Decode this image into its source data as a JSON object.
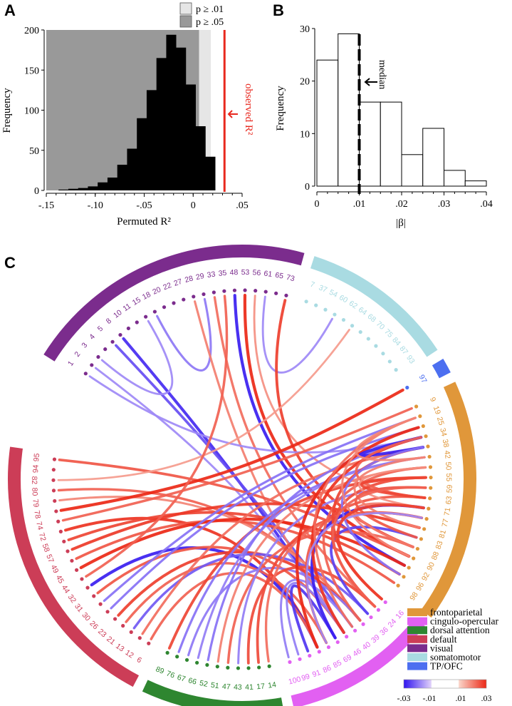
{
  "chart_data": [
    {
      "panel": "A",
      "type": "histogram",
      "xlabel": "Permuted R²",
      "ylabel": "Frequency",
      "xlim": [
        -0.15,
        0.05
      ],
      "ylim": [
        0,
        200
      ],
      "xticks": [
        -0.15,
        -0.1,
        -0.05,
        0,
        0.05
      ],
      "xtick_labels": [
        "-.15",
        "-.10",
        "-.05",
        "0",
        ".05"
      ],
      "yticks": [
        0,
        50,
        100,
        150,
        200
      ],
      "ytick_labels": [
        "0",
        "50",
        "100",
        "150",
        "200"
      ],
      "bin_edges": [
        -0.1375,
        -0.1275,
        -0.1175,
        -0.1075,
        -0.0975,
        -0.0875,
        -0.0775,
        -0.0675,
        -0.0575,
        -0.0475,
        -0.0375,
        -0.0275,
        -0.0175,
        -0.0075,
        0.0025,
        0.0125,
        0.0225
      ],
      "counts": [
        1,
        2,
        3,
        5,
        10,
        16,
        32,
        52,
        90,
        125,
        165,
        194,
        178,
        132,
        80,
        42
      ],
      "shaded_regions": [
        {
          "label": "p ≥ .01",
          "x_from": -0.15,
          "x_to": 0.018,
          "color": "#e6e6e6"
        },
        {
          "label": "p ≥ .05",
          "x_from": -0.15,
          "x_to": 0.006,
          "color": "#999999"
        }
      ],
      "observed": {
        "label": "observed R²",
        "value": 0.032,
        "color": "#e8281e"
      },
      "legend": [
        "p ≥ .01",
        "p ≥ .05"
      ]
    },
    {
      "panel": "B",
      "type": "histogram",
      "xlabel": "|β|",
      "ylabel": "Frequency",
      "xlim": [
        0,
        0.04
      ],
      "ylim": [
        0,
        30
      ],
      "xticks": [
        0,
        0.01,
        0.02,
        0.03,
        0.04
      ],
      "xtick_labels": [
        "0",
        ".01",
        ".02",
        ".03",
        ".04"
      ],
      "yticks": [
        0,
        10,
        20,
        30
      ],
      "ytick_labels": [
        "0",
        "10",
        "20",
        "30"
      ],
      "bin_edges": [
        0,
        0.005,
        0.01,
        0.015,
        0.02,
        0.025,
        0.03,
        0.035,
        0.04
      ],
      "counts": [
        24,
        29,
        16,
        16,
        6,
        11,
        3,
        1
      ],
      "median": {
        "label": "median",
        "value": 0.01
      }
    },
    {
      "panel": "C",
      "type": "chord",
      "node_order": [
        1,
        2,
        3,
        4,
        5,
        8,
        10,
        11,
        15,
        18,
        20,
        22,
        27,
        28,
        29,
        33,
        35,
        48,
        53,
        56,
        61,
        65,
        73,
        7,
        37,
        54,
        60,
        62,
        64,
        68,
        70,
        75,
        84,
        87,
        93,
        97,
        9,
        19,
        25,
        34,
        38,
        42,
        50,
        55,
        59,
        63,
        71,
        77,
        81,
        83,
        88,
        90,
        92,
        96,
        98,
        16,
        24,
        36,
        39,
        40,
        46,
        69,
        85,
        86,
        91,
        99,
        100,
        14,
        17,
        41,
        43,
        47,
        51,
        52,
        66,
        67,
        76,
        89,
        6,
        12,
        13,
        21,
        23,
        26,
        30,
        31,
        32,
        44,
        45,
        49,
        57,
        58,
        72,
        74,
        78,
        79,
        80,
        82,
        94,
        95
      ],
      "networks": [
        {
          "name": "visual",
          "color": "#7b2c8d",
          "nodes": [
            1,
            2,
            3,
            4,
            5,
            8,
            10,
            11,
            15,
            18,
            20,
            22,
            27,
            28,
            29,
            33,
            35,
            48,
            53,
            56,
            61,
            65,
            73
          ]
        },
        {
          "name": "somatomotor",
          "color": "#a9dbe2",
          "nodes": [
            7,
            37,
            54,
            60,
            62,
            64,
            68,
            70,
            75,
            84,
            87,
            93
          ]
        },
        {
          "name": "TP/OFC",
          "color": "#4c6ff0",
          "nodes": [
            97
          ]
        },
        {
          "name": "frontoparietal",
          "color": "#e0973a",
          "nodes": [
            9,
            19,
            25,
            34,
            38,
            42,
            50,
            55,
            59,
            63,
            71,
            77,
            81,
            83,
            88,
            90,
            92,
            96,
            98
          ]
        },
        {
          "name": "cingulo-opercular",
          "color": "#e260f2",
          "nodes": [
            16,
            24,
            36,
            39,
            40,
            46,
            69,
            85,
            86,
            91,
            99,
            100
          ]
        },
        {
          "name": "dorsal attention",
          "color": "#2e8630",
          "nodes": [
            14,
            17,
            41,
            43,
            47,
            51,
            52,
            66,
            67,
            76,
            89
          ]
        },
        {
          "name": "default",
          "color": "#cc3d57",
          "nodes": [
            6,
            12,
            13,
            21,
            23,
            26,
            30,
            31,
            32,
            44,
            45,
            49,
            57,
            58,
            72,
            74,
            78,
            79,
            80,
            82,
            94,
            95
          ]
        }
      ],
      "legend": [
        "frontoparietal",
        "cingulo-opercular",
        "dorsal attention",
        "default",
        "visual",
        "somatomotor",
        "TP/OFC"
      ],
      "colorbar": {
        "ticks": [
          "-.03",
          "-.01",
          ".01",
          ".03"
        ],
        "min": -0.03,
        "max": 0.03
      },
      "edges": [
        [
          8,
          46,
          -0.028
        ],
        [
          5,
          40,
          -0.022
        ],
        [
          18,
          29,
          -0.015
        ],
        [
          28,
          46,
          0.015
        ],
        [
          33,
          24,
          0.018
        ],
        [
          48,
          92,
          -0.03
        ],
        [
          53,
          90,
          0.03
        ],
        [
          56,
          63,
          0.012
        ],
        [
          61,
          60,
          -0.012
        ],
        [
          73,
          88,
          0.026
        ],
        [
          2,
          46,
          -0.012
        ],
        [
          3,
          15,
          -0.012
        ],
        [
          1,
          34,
          -0.012
        ],
        [
          95,
          90,
          0.022
        ],
        [
          82,
          64,
          0.01
        ],
        [
          80,
          39,
          0.02
        ],
        [
          79,
          39,
          0.014
        ],
        [
          78,
          97,
          0.03
        ],
        [
          74,
          9,
          0.02
        ],
        [
          72,
          86,
          0.028
        ],
        [
          58,
          96,
          0.025
        ],
        [
          57,
          81,
          0.027
        ],
        [
          49,
          98,
          0.022
        ],
        [
          45,
          92,
          0.03
        ],
        [
          44,
          35,
          0.02
        ],
        [
          32,
          86,
          -0.03
        ],
        [
          31,
          46,
          0.022
        ],
        [
          30,
          19,
          -0.016
        ],
        [
          26,
          25,
          -0.016
        ],
        [
          23,
          39,
          0.026
        ],
        [
          21,
          85,
          0.02
        ],
        [
          13,
          36,
          -0.02
        ],
        [
          12,
          38,
          0.018
        ],
        [
          6,
          86,
          0.02
        ],
        [
          89,
          55,
          0.025
        ],
        [
          76,
          42,
          -0.016
        ],
        [
          67,
          39,
          -0.015
        ],
        [
          66,
          42,
          -0.014
        ],
        [
          52,
          34,
          -0.016
        ],
        [
          51,
          50,
          0.015
        ],
        [
          47,
          88,
          0.02
        ],
        [
          43,
          59,
          -0.014
        ],
        [
          41,
          24,
          0.024
        ],
        [
          17,
          77,
          0.024
        ],
        [
          14,
          77,
          0.018
        ],
        [
          100,
          40,
          -0.014
        ],
        [
          99,
          46,
          -0.014
        ],
        [
          91,
          69,
          -0.026
        ],
        [
          86,
          25,
          0.03
        ],
        [
          85,
          63,
          0.022
        ],
        [
          69,
          71,
          -0.03
        ],
        [
          46,
          34,
          0.028
        ],
        [
          40,
          19,
          0.018
        ],
        [
          39,
          50,
          0.02
        ],
        [
          36,
          83,
          -0.024
        ],
        [
          24,
          55,
          0.024
        ],
        [
          16,
          38,
          0.025
        ],
        [
          38,
          34,
          -0.03
        ],
        [
          96,
          38,
          -0.016
        ],
        [
          90,
          19,
          0.014
        ],
        [
          88,
          71,
          0.016
        ],
        [
          63,
          34,
          0.02
        ],
        [
          55,
          63,
          0.025
        ],
        [
          81,
          42,
          0.015
        ],
        [
          42,
          19,
          0.014
        ],
        [
          50,
          71,
          0.012
        ],
        [
          83,
          59,
          0.022
        ],
        [
          77,
          85,
          -0.012
        ],
        [
          59,
          24,
          0.02
        ],
        [
          71,
          16,
          0.026
        ]
      ]
    }
  ],
  "panels": {
    "a": "A",
    "b": "B",
    "c": "C"
  },
  "panel_b_arrow_label": "median"
}
